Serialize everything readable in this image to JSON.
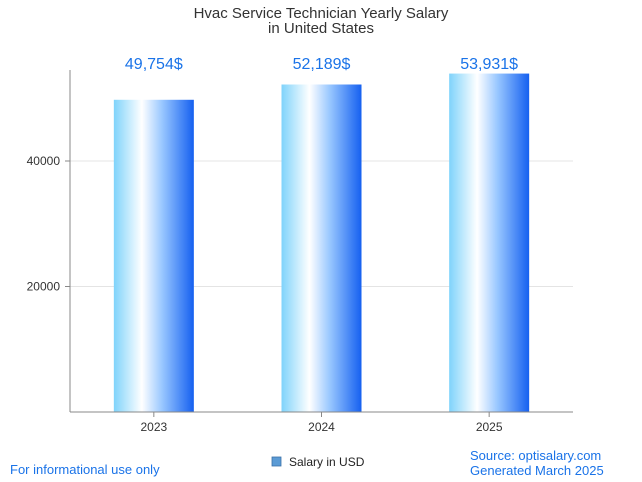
{
  "chart_data": {
    "type": "bar",
    "title_lines": [
      "Hvac Service Technician Yearly Salary",
      "in United States"
    ],
    "categories": [
      "2023",
      "2024",
      "2025"
    ],
    "series": [
      {
        "name": "Salary in USD",
        "values": [
          49754,
          52189,
          53931
        ]
      }
    ],
    "data_labels": [
      "49,754$",
      "52,189$",
      "53,931$"
    ],
    "y_ticks": [
      20000,
      40000
    ],
    "y_tick_labels": [
      "20000",
      "40000"
    ],
    "ylim": [
      0,
      54500
    ],
    "grid": true,
    "legend": "bottom-center",
    "colors": {
      "bar_light": "#bfeaff",
      "bar_mid": "#4fc3f7",
      "bar_dark": "#1e6cf5",
      "label": "#1a73e8"
    }
  },
  "footer": {
    "left": "For informational use only",
    "source": "Source: optisalary.com",
    "generated": "Generated March 2025"
  }
}
